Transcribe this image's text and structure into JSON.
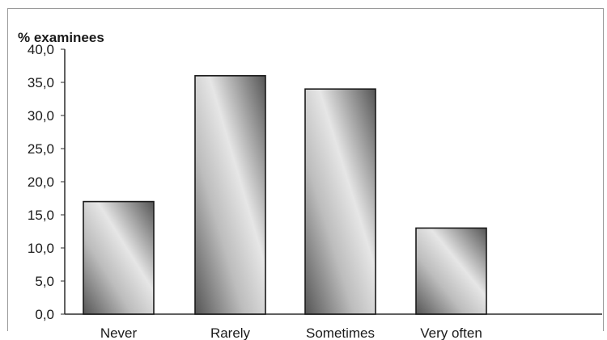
{
  "chart_data": {
    "type": "bar",
    "title": "",
    "ylabel": "% examinees",
    "xlabel": "",
    "categories": [
      "Never",
      "Rarely",
      "Sometimes",
      "Very often"
    ],
    "values": [
      17.0,
      36.0,
      34.0,
      13.0
    ],
    "ylim": [
      0,
      40
    ],
    "yticks": [
      "0,0",
      "5,0",
      "10,0",
      "15,0",
      "20,0",
      "25,0",
      "30,0",
      "35,0",
      "40,0"
    ],
    "ytick_values": [
      0,
      5,
      10,
      15,
      20,
      25,
      30,
      35,
      40
    ],
    "grid": false,
    "legend": "none",
    "colors": {
      "bar_light": "#e6e6e6",
      "bar_mid": "#bdbdbd",
      "bar_dark": "#555555",
      "bar_outline": "#1a1a1a",
      "axis": "#2b2b2b",
      "frame": "#9a9a9a"
    }
  }
}
